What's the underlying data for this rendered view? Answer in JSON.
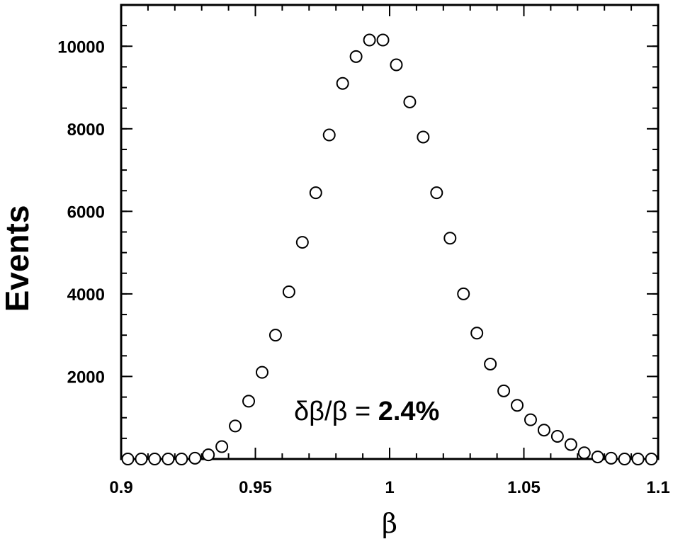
{
  "chart_data": {
    "type": "scatter",
    "xlabel": "β",
    "ylabel": "Events",
    "xlim": [
      0.9,
      1.1
    ],
    "ylim": [
      0,
      11000
    ],
    "x_ticks": [
      0.9,
      0.95,
      1.0,
      1.05,
      1.1
    ],
    "x_tick_labels": [
      "0.9",
      "0.95",
      "1",
      "1.05",
      "1.1"
    ],
    "y_ticks": [
      2000,
      4000,
      6000,
      8000,
      10000
    ],
    "y_tick_labels": [
      "2000",
      "4000",
      "6000",
      "8000",
      "10000"
    ],
    "grid": false,
    "marker": "open-circle",
    "annotation": {
      "prefix": "δβ/β = ",
      "value": "2.4%"
    },
    "x": [
      0.9025,
      0.9075,
      0.9125,
      0.9175,
      0.9225,
      0.9275,
      0.9325,
      0.9375,
      0.9425,
      0.9475,
      0.9525,
      0.9575,
      0.9625,
      0.9675,
      0.9725,
      0.9775,
      0.9825,
      0.9875,
      0.9925,
      0.9975,
      1.0025,
      1.0075,
      1.0125,
      1.0175,
      1.0225,
      1.0275,
      1.0325,
      1.0375,
      1.0425,
      1.0475,
      1.0525,
      1.0575,
      1.0625,
      1.0675,
      1.0725,
      1.0775,
      1.0825,
      1.0875,
      1.0925,
      1.0975
    ],
    "y": [
      0,
      0,
      0,
      0,
      0,
      20,
      100,
      300,
      800,
      1400,
      2100,
      3000,
      4050,
      5250,
      6450,
      7850,
      9100,
      9750,
      10150,
      10150,
      9550,
      8650,
      7800,
      6450,
      5350,
      4000,
      3050,
      2300,
      1650,
      1300,
      950,
      700,
      550,
      350,
      150,
      50,
      20,
      0,
      0,
      0
    ]
  }
}
